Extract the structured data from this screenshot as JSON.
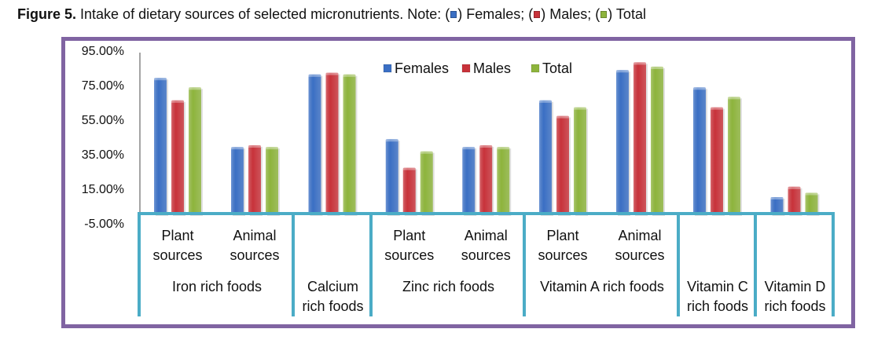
{
  "caption": {
    "figure_label": "Figure 5.",
    "text": " Intake of dietary sources of selected micronutrients. Note: (",
    "legend_note": [
      {
        "label": "Females",
        "color": "#3a6fc4"
      },
      {
        "label": "Males",
        "color": "#c8323a"
      },
      {
        "label": "Total",
        "color": "#8db43c"
      }
    ],
    "sep1": ") Females; (",
    "sep2": ") Males; (",
    "sep3": ") Total"
  },
  "chart_data": {
    "type": "bar",
    "title": "",
    "xlabel": "",
    "ylabel": "",
    "ylim": [
      -5,
      95
    ],
    "yticks": [
      "95.00%",
      "75.00%",
      "55.00%",
      "35.00%",
      "15.00%",
      "-5.00%"
    ],
    "ytick_values": [
      95,
      75,
      55,
      35,
      15,
      -5
    ],
    "grid": false,
    "legend_position": "top-center",
    "categories": [
      {
        "sub": [
          "Plant",
          "sources"
        ],
        "group": "Iron rich foods"
      },
      {
        "sub": [
          "Animal",
          "sources"
        ],
        "group": "Iron rich foods"
      },
      {
        "sub": [],
        "group": "Calcium rich foods"
      },
      {
        "sub": [
          "Plant",
          "sources"
        ],
        "group": "Zinc rich foods"
      },
      {
        "sub": [
          "Animal",
          "sources"
        ],
        "group": "Zinc rich foods"
      },
      {
        "sub": [
          "Plant",
          "sources"
        ],
        "group": "Vitamin A rich foods"
      },
      {
        "sub": [
          "Animal",
          "sources"
        ],
        "group": "Vitamin A rich foods"
      },
      {
        "sub": [],
        "group": "Vitamin C rich foods"
      },
      {
        "sub": [],
        "group": "Vitamin D rich foods"
      }
    ],
    "groups": [
      {
        "label": [
          "Iron rich foods"
        ],
        "span": 2
      },
      {
        "label": [
          "Calcium",
          "rich foods"
        ],
        "span": 1
      },
      {
        "label": [
          "Zinc rich foods"
        ],
        "span": 2
      },
      {
        "label": [
          "Vitamin A rich foods"
        ],
        "span": 2
      },
      {
        "label": [
          "Vitamin C",
          "rich foods"
        ],
        "span": 1
      },
      {
        "label": [
          "Vitamin D",
          "rich foods"
        ],
        "span": 1
      }
    ],
    "series": [
      {
        "name": "Females",
        "color": "#3a6fc4",
        "values": [
          79,
          39,
          81,
          43.5,
          39,
          66,
          83.5,
          73.5,
          10
        ]
      },
      {
        "name": "Males",
        "color": "#c8323a",
        "values": [
          66,
          40,
          82,
          27,
          40,
          57,
          88,
          62,
          16
        ]
      },
      {
        "name": "Total",
        "color": "#8db43c",
        "values": [
          73.5,
          39,
          81,
          36.5,
          39,
          62,
          85.5,
          68,
          12.5
        ]
      }
    ]
  },
  "colors": {
    "frame": "#8064a2",
    "category_grid": "#4bacc6",
    "axis": "#868686"
  }
}
